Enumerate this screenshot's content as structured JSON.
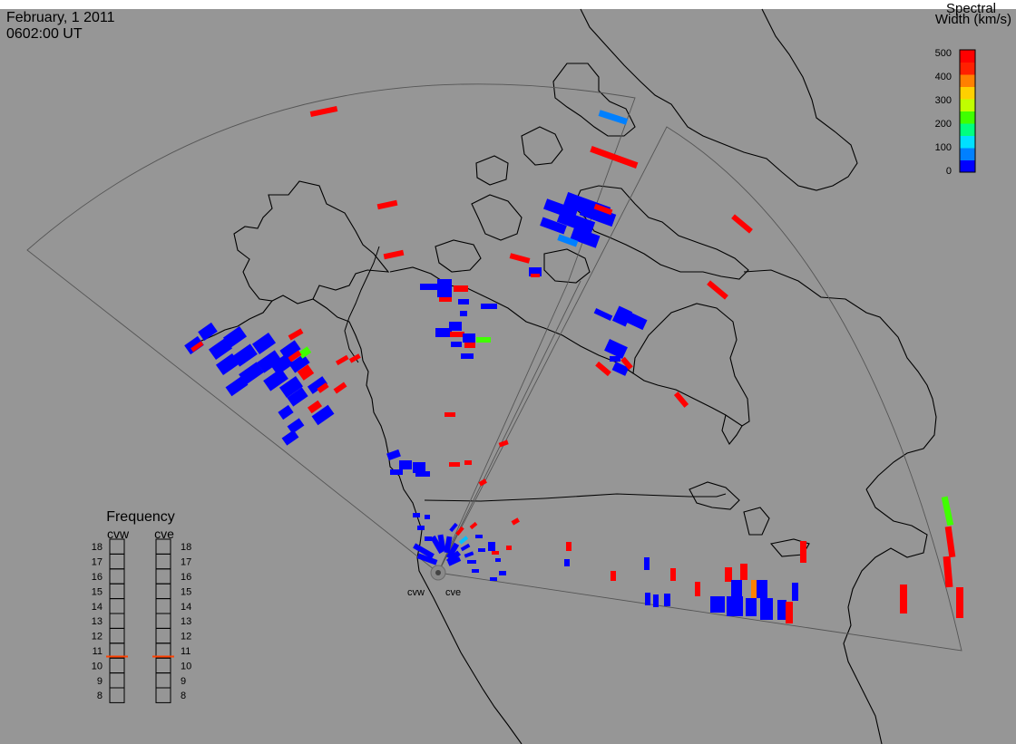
{
  "header": {
    "date": "February, 1 2011",
    "time": "0602:00 UT"
  },
  "colorbar": {
    "title_line1": "Spectral",
    "title_line2": "Width (km/s)",
    "ticks": [
      "500",
      "400",
      "300",
      "200",
      "100",
      "0"
    ],
    "scale_min": 0,
    "scale_max": 500,
    "colors": [
      "#0000ff",
      "#0080ff",
      "#00e0ff",
      "#00ff80",
      "#40ff00",
      "#c0ff00",
      "#ffd000",
      "#ff8000",
      "#ff2000",
      "#ff0000"
    ]
  },
  "frequency_panel": {
    "title": "Frequency",
    "radars": [
      "cvw",
      "cve"
    ],
    "levels": [
      "18",
      "17",
      "16",
      "15",
      "14",
      "13",
      "12",
      "11",
      "10",
      "9",
      "8"
    ],
    "level_min": 8,
    "level_max": 18,
    "cvw_frequency": 10.6,
    "cve_frequency": 10.6,
    "marker_color": "#ff4000"
  },
  "radar_sites": [
    {
      "name": "cvw"
    },
    {
      "name": "cve"
    }
  ],
  "colors": {
    "background": "#969696",
    "land": "#969696",
    "outline": "#000000",
    "fov": "#505050",
    "blue_echo": "#0000ff",
    "red_echo": "#ff0000"
  }
}
